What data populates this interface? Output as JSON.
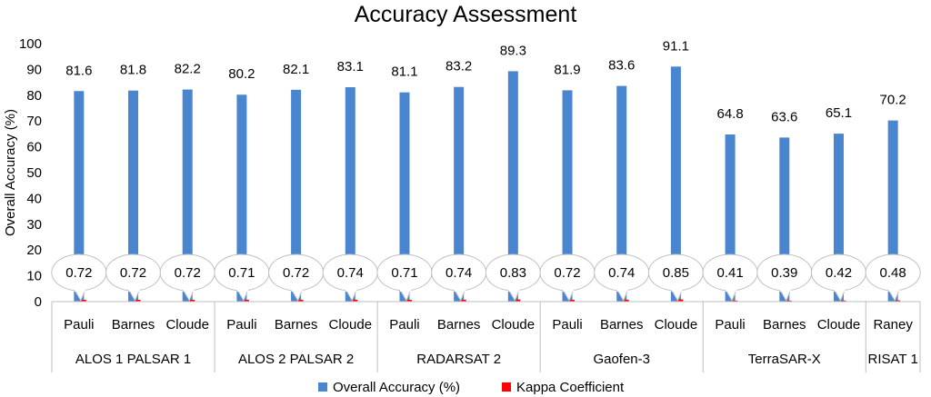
{
  "chart_data": {
    "type": "bar",
    "title": "Accuracy Assessment",
    "ylabel": "Overall Accuracy (%)",
    "xlabel": "",
    "ylim": [
      0,
      100
    ],
    "yticks": [
      0,
      10,
      20,
      30,
      40,
      50,
      60,
      70,
      80,
      90,
      100
    ],
    "grid": false,
    "legend_position": "bottom",
    "groups": [
      {
        "name": "ALOS 1 PALSAR 1",
        "categories": [
          "Pauli",
          "Barnes",
          "Cloude"
        ]
      },
      {
        "name": "ALOS 2 PALSAR 2",
        "categories": [
          "Pauli",
          "Barnes",
          "Cloude"
        ]
      },
      {
        "name": "RADARSAT 2",
        "categories": [
          "Pauli",
          "Barnes",
          "Cloude"
        ]
      },
      {
        "name": "Gaofen-3",
        "categories": [
          "Pauli",
          "Barnes",
          "Cloude"
        ]
      },
      {
        "name": "TerraSAR-X",
        "categories": [
          "Pauli",
          "Barnes",
          "Cloude"
        ]
      },
      {
        "name": "RISAT 1",
        "categories": [
          "Raney"
        ]
      }
    ],
    "series": [
      {
        "name": "Overall Accuracy (%)",
        "color": "#4a86d0",
        "values": [
          81.6,
          81.8,
          82.2,
          80.2,
          82.1,
          83.1,
          81.1,
          83.2,
          89.3,
          81.9,
          83.6,
          91.1,
          64.8,
          63.6,
          65.1,
          70.2
        ]
      },
      {
        "name": "Kappa Coefficient",
        "color": "#ff0000",
        "values": [
          0.72,
          0.72,
          0.72,
          0.71,
          0.72,
          0.74,
          0.71,
          0.74,
          0.83,
          0.72,
          0.74,
          0.85,
          0.41,
          0.39,
          0.42,
          0.48
        ]
      }
    ]
  }
}
